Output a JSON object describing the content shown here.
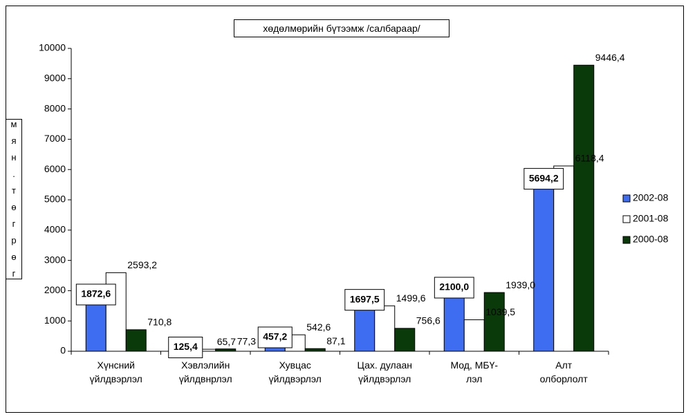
{
  "chart_data": {
    "type": "bar",
    "title": "хөдөлмөрийн бүтээмж /салбараар/",
    "y_label": "мян.төгрөг",
    "categories": [
      "Хүнсний\nүйлдвэрлэл",
      "Хэвлэлийн\nүйлдвнрлэл",
      "Хувцас\nүйлдвэрлэл",
      "Цах. дулаан\nүйлдвэрлэл",
      "Мод, МБҮ-\nлэл",
      "Алт\nолборлолт"
    ],
    "series": [
      {
        "name": "2002-08",
        "color": "#3f6df2",
        "values": [
          1872.6,
          125.4,
          457.2,
          1697.5,
          2100.0,
          5694.2
        ],
        "value_labels": [
          "1872,6",
          "125,4",
          "457,2",
          "1697,5",
          "2100,0",
          "5694,2"
        ]
      },
      {
        "name": "2001-08",
        "color": "#ffffff",
        "values": [
          2593.2,
          65.7,
          542.6,
          1499.6,
          1039.5,
          6118.4
        ],
        "value_labels": [
          "2593,2",
          "65,7",
          "542,6",
          "1499,6",
          "1039,5",
          "6118,4"
        ]
      },
      {
        "name": "2000-08",
        "color": "#0a3a0a",
        "values": [
          710.8,
          77.3,
          87.1,
          756.6,
          1939.0,
          9446.4
        ],
        "value_labels": [
          "710,8",
          "77,3",
          "87,1",
          "756,6",
          "1939,0",
          "9446,4"
        ]
      }
    ],
    "ylim": [
      0,
      10000
    ],
    "yticks": [
      0,
      1000,
      2000,
      3000,
      4000,
      5000,
      6000,
      7000,
      8000,
      9000,
      10000
    ],
    "grid": false
  }
}
